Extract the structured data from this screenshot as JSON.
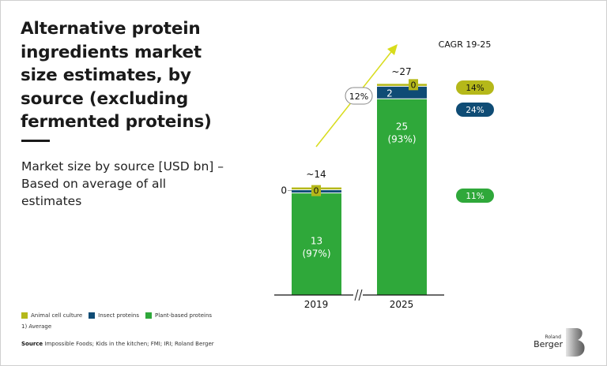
{
  "header": {
    "title": "Alternative protein ingredients market size estimates, by source (excluding fermented proteins)",
    "subtitle": "Market size by source [USD bn] – Based on average of all estimates"
  },
  "colors": {
    "animal_cell_culture": "#b5b81a",
    "insect_proteins": "#0f4c75",
    "plant_based_proteins": "#2fa83a",
    "arrow": "#d8dc1c"
  },
  "legend": [
    {
      "label": "Animal cell culture",
      "color": "#b5b81a"
    },
    {
      "label": "Insect proteins",
      "color": "#0f4c75"
    },
    {
      "label": "Plant-based proteins",
      "color": "#2fa83a"
    }
  ],
  "footnote": "1) Average",
  "source": {
    "label": "Source",
    "text": " Impossible Foods; Kids in the kitchen; FMI; IRI; Roland Berger"
  },
  "logo": {
    "small": "Roland",
    "big": "Berger"
  },
  "chart_data": {
    "type": "bar",
    "stacked": true,
    "title": "Market size by source [USD bn]",
    "categories": [
      "2019",
      "2025"
    ],
    "series": [
      {
        "name": "Plant-based proteins",
        "values": [
          13,
          25
        ],
        "labels": [
          "13",
          "25"
        ],
        "share_labels": [
          "(97%)",
          "(93%)"
        ]
      },
      {
        "name": "Insect proteins",
        "values": [
          0.4,
          1.6
        ],
        "labels": [
          "0",
          "2"
        ]
      },
      {
        "name": "Animal cell culture",
        "values": [
          0.1,
          0.3
        ],
        "labels": [
          "0",
          "0"
        ]
      }
    ],
    "totals": [
      "~14",
      "~27"
    ],
    "overall_cagr": "12%",
    "cagr_header": "CAGR 19-25",
    "cagr_by_series": [
      {
        "name": "Animal cell culture",
        "value": "14%"
      },
      {
        "name": "Insect proteins",
        "value": "24%"
      },
      {
        "name": "Plant-based proteins",
        "value": "11%"
      }
    ],
    "axis_break": true,
    "ylim": [
      0,
      28
    ],
    "xlabel": "",
    "ylabel": ""
  }
}
